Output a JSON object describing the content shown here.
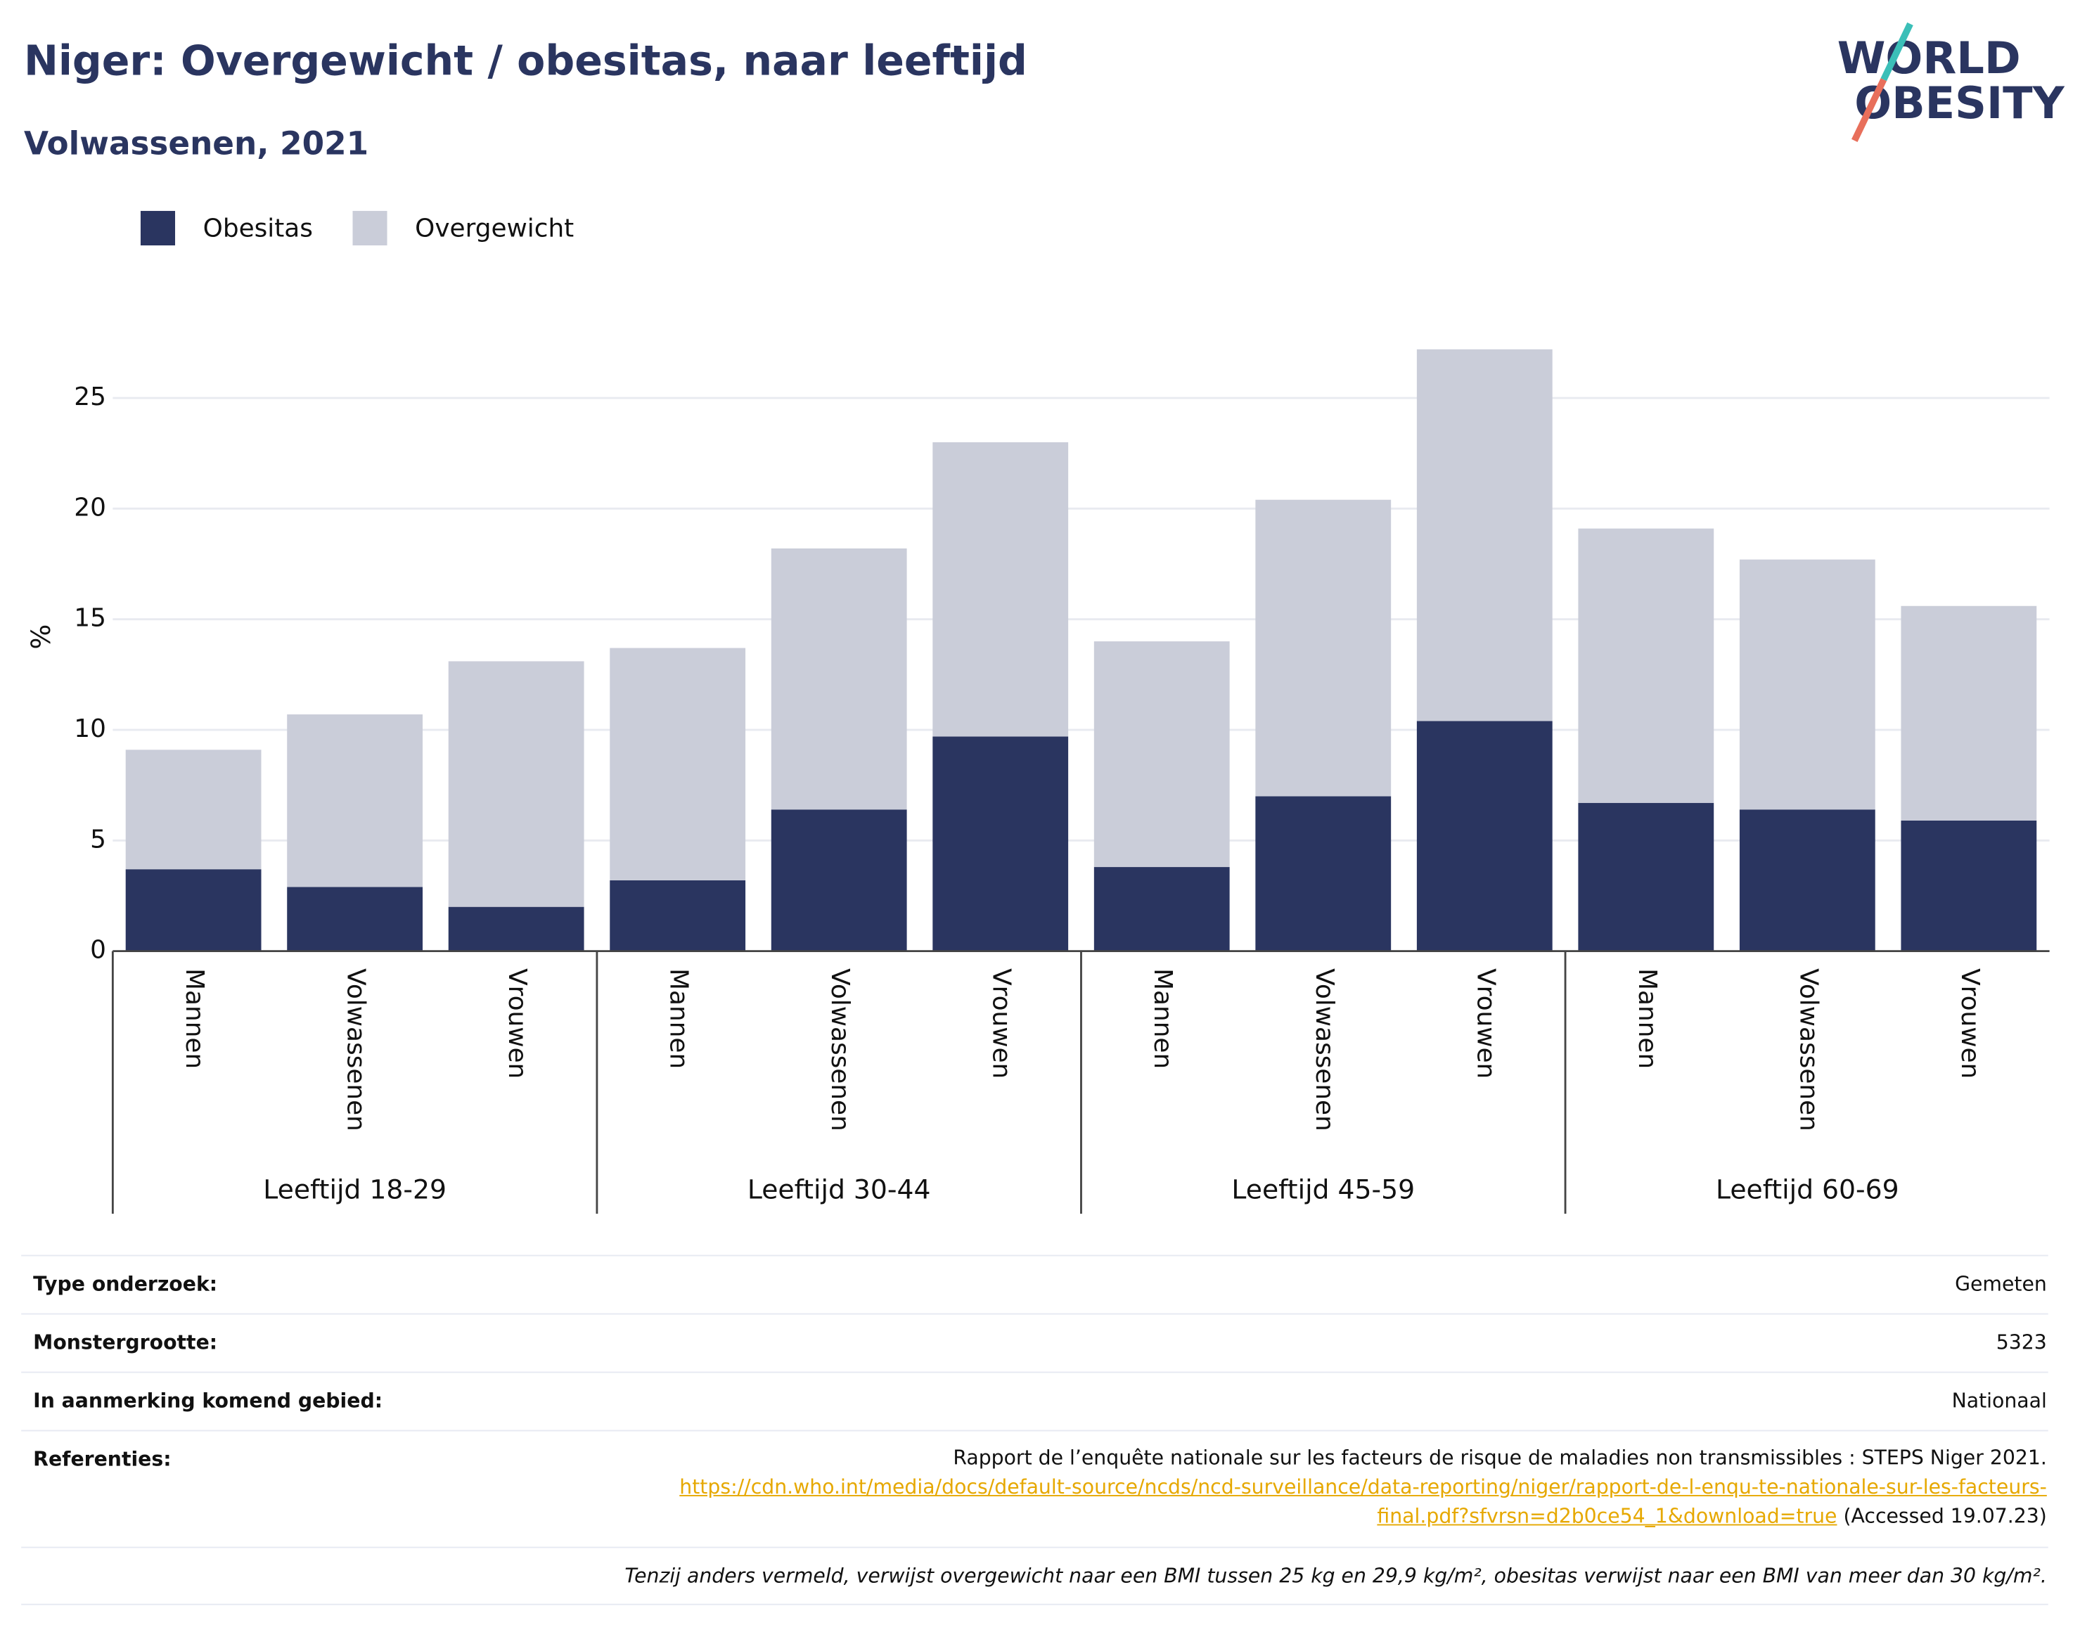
{
  "chart_data": {
    "type": "stacked_bar",
    "title": "Niger: Overgewicht / obesitas, naar leeftijd",
    "subtitle": "Volwassenen, 2021",
    "y_label": "%",
    "groups": [
      "Leeftijd 18-29",
      "Leeftijd 30-44",
      "Leeftijd 45-59",
      "Leeftijd 60-69"
    ],
    "categories": [
      "Mannen",
      "Volwassenen",
      "Vrouwen",
      "Mannen",
      "Volwassenen",
      "Vrouwen",
      "Mannen",
      "Volwassenen",
      "Vrouwen",
      "Mannen",
      "Volwassenen",
      "Vrouwen"
    ],
    "series": [
      {
        "name": "Obesitas",
        "color": "#2a3560",
        "values": [
          3.7,
          2.9,
          2.0,
          3.2,
          6.4,
          9.7,
          3.8,
          7.0,
          10.4,
          6.7,
          6.4,
          5.9
        ]
      },
      {
        "name": "Overgewicht",
        "color": "#cacdd9",
        "values": [
          5.4,
          7.8,
          11.1,
          10.5,
          11.8,
          13.3,
          10.2,
          13.4,
          16.8,
          12.4,
          11.3,
          9.7
        ]
      }
    ],
    "ylim": [
      0,
      28
    ],
    "yticks": [
      0,
      5,
      10,
      15,
      20,
      25
    ],
    "grid": true,
    "legend": "top-left"
  },
  "logo": [
    "WORLD",
    "OBESITY"
  ],
  "footer": {
    "rows": [
      [
        "Type onderzoek:",
        "Gemeten"
      ],
      [
        "Monstergrootte:",
        "5323"
      ],
      [
        "In aanmerking komend gebied:",
        "Nationaal"
      ]
    ],
    "references_label": "Referenties:",
    "reference_text": "Rapport de l’enquête nationale sur les facteurs de risque de maladies non transmissibles : STEPS Niger 2021.",
    "reference_url": "https://cdn.who.int/media/docs/default-source/ncds/ncd-surveillance/data-reporting/niger/rapport-de-l-enqu-te-nationale-sur-les-facteurs-final.pdf?sfvrsn=d2b0ce54_1&download=true",
    "reference_accessed": "(Accessed 19.07.23)",
    "note": "Tenzij anders vermeld, verwijst overgewicht naar een BMI tussen 25 kg en 29,9 kg/m², obesitas verwijst naar een BMI van meer dan 30 kg/m²."
  }
}
